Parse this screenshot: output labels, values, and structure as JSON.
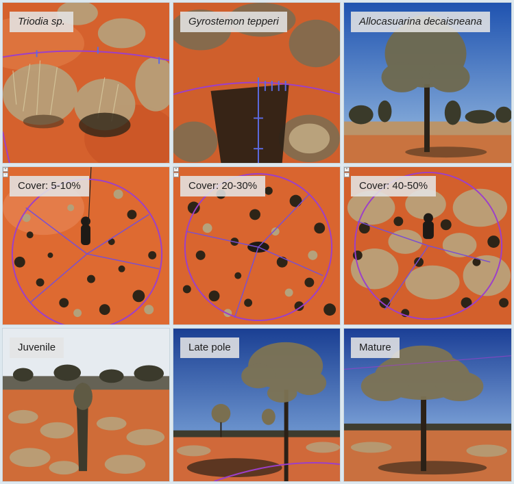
{
  "panels": [
    {
      "id": "triodia",
      "label": "Triodia sp.",
      "italic": true,
      "scene": "ground"
    },
    {
      "id": "gyrostemon",
      "label": "Gyrostemon tepperi",
      "italic": true,
      "scene": "ground"
    },
    {
      "id": "allocasuarina",
      "label": "Allocasuarina decaisneana",
      "italic": true,
      "scene": "tree-sky"
    },
    {
      "id": "cover-low",
      "label": "Cover: 5-10%",
      "italic": false,
      "scene": "aerial"
    },
    {
      "id": "cover-mid",
      "label": "Cover: 20-30%",
      "italic": false,
      "scene": "aerial"
    },
    {
      "id": "cover-high",
      "label": "Cover: 40-50%",
      "italic": false,
      "scene": "aerial"
    },
    {
      "id": "juvenile",
      "label": "Juvenile",
      "italic": false,
      "scene": "landscape-pale"
    },
    {
      "id": "late-pole",
      "label": "Late pole",
      "italic": false,
      "scene": "tree-sky"
    },
    {
      "id": "mature",
      "label": "Mature",
      "italic": false,
      "scene": "tree-sky"
    }
  ],
  "colors": {
    "sand": "#d9622c",
    "sand_light": "#e7814c",
    "spinifex": "#b9a27a",
    "shrub_dark": "#3b3426",
    "sky": "#2f63b7",
    "sky_pale": "#dfe6ee",
    "tree_foliage": "#7d7354",
    "overlay_circle": "#9c3fc9",
    "overlay_tick": "#5b6ae0"
  }
}
